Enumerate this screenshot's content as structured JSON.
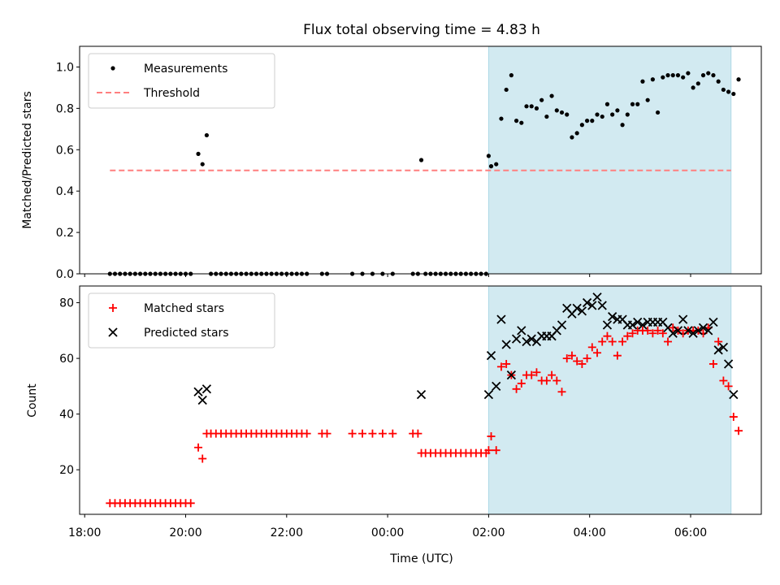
{
  "title": "Flux total observing time = 4.83 h",
  "xlabel": "Time (UTC)",
  "colors": {
    "observing_span": "#add8e6",
    "measurements": "#000000",
    "threshold": "#ff7f7f",
    "matched": "#ff0000",
    "predicted": "#000000"
  },
  "chart_data": [
    {
      "type": "scatter",
      "ylabel": "Matched/Predicted stars",
      "ylim": [
        0,
        1.1
      ],
      "yticks": [
        0.0,
        0.2,
        0.4,
        0.6,
        0.8,
        1.0
      ],
      "ytick_labels": [
        "0.0",
        "0.2",
        "0.4",
        "0.6",
        "0.8",
        "1.0"
      ],
      "xticks": [
        "18:00",
        "20:00",
        "22:00",
        "00:00",
        "02:00",
        "04:00",
        "06:00"
      ],
      "xticks_hours": [
        18,
        20,
        22,
        24,
        26,
        28,
        30
      ],
      "xlim_hours": [
        17.9,
        31.4
      ],
      "observing_span_hours": [
        26.0,
        30.8
      ],
      "legend_position": "upper left",
      "series": [
        {
          "name": "Measurements",
          "marker": "dot",
          "x": [
            "18:30",
            "18:36",
            "18:42",
            "18:48",
            "18:54",
            "19:00",
            "19:06",
            "19:12",
            "19:18",
            "19:24",
            "19:30",
            "19:36",
            "19:42",
            "19:48",
            "19:54",
            "20:00",
            "20:06",
            "20:15",
            "20:20",
            "20:25",
            "20:30",
            "20:36",
            "20:42",
            "20:48",
            "20:54",
            "21:00",
            "21:06",
            "21:12",
            "21:18",
            "21:24",
            "21:30",
            "21:36",
            "21:42",
            "21:48",
            "21:54",
            "22:00",
            "22:06",
            "22:12",
            "22:18",
            "22:24",
            "22:42",
            "22:48",
            "23:18",
            "23:30",
            "23:42",
            "23:54",
            "00:06",
            "00:30",
            "00:36",
            "00:40",
            "00:45",
            "00:51",
            "00:57",
            "01:03",
            "01:09",
            "01:15",
            "01:21",
            "01:27",
            "01:33",
            "01:39",
            "01:45",
            "01:51",
            "01:57",
            "02:00",
            "02:03",
            "02:09",
            "02:15",
            "02:21",
            "02:27",
            "02:33",
            "02:39",
            "02:45",
            "02:51",
            "02:57",
            "03:03",
            "03:09",
            "03:15",
            "03:21",
            "03:27",
            "03:33",
            "03:39",
            "03:45",
            "03:51",
            "03:57",
            "04:03",
            "04:09",
            "04:15",
            "04:21",
            "04:27",
            "04:33",
            "04:39",
            "04:45",
            "04:51",
            "04:57",
            "05:03",
            "05:09",
            "05:15",
            "05:21",
            "05:27",
            "05:33",
            "05:39",
            "05:45",
            "05:51",
            "05:57",
            "06:03",
            "06:09",
            "06:15",
            "06:21",
            "06:27",
            "06:33",
            "06:39",
            "06:45",
            "06:51",
            "06:57"
          ],
          "y": [
            0.0,
            0.0,
            0.0,
            0.0,
            0.0,
            0.0,
            0.0,
            0.0,
            0.0,
            0.0,
            0.0,
            0.0,
            0.0,
            0.0,
            0.0,
            0.0,
            0.0,
            0.58,
            0.53,
            0.67,
            0.0,
            0.0,
            0.0,
            0.0,
            0.0,
            0.0,
            0.0,
            0.0,
            0.0,
            0.0,
            0.0,
            0.0,
            0.0,
            0.0,
            0.0,
            0.0,
            0.0,
            0.0,
            0.0,
            0.0,
            0.0,
            0.0,
            0.0,
            0.0,
            0.0,
            0.0,
            0.0,
            0.0,
            0.0,
            0.55,
            0.0,
            0.0,
            0.0,
            0.0,
            0.0,
            0.0,
            0.0,
            0.0,
            0.0,
            0.0,
            0.0,
            0.0,
            0.0,
            0.57,
            0.52,
            0.53,
            0.75,
            0.89,
            0.96,
            0.74,
            0.73,
            0.81,
            0.81,
            0.8,
            0.84,
            0.76,
            0.86,
            0.79,
            0.78,
            0.77,
            0.66,
            0.68,
            0.72,
            0.74,
            0.74,
            0.77,
            0.76,
            0.82,
            0.77,
            0.79,
            0.72,
            0.77,
            0.82,
            0.82,
            0.93,
            0.84,
            0.94,
            0.78,
            0.95,
            0.96,
            0.96,
            0.96,
            0.95,
            0.97,
            0.9,
            0.92,
            0.96,
            0.97,
            0.96,
            0.93,
            0.89,
            0.88,
            0.87,
            0.94
          ]
        },
        {
          "name": "Threshold",
          "type": "line",
          "style": "dashed",
          "x_hours": [
            18.5,
            30.8
          ],
          "y": [
            0.5,
            0.5
          ]
        }
      ]
    },
    {
      "type": "scatter",
      "ylabel": "Count",
      "ylim": [
        4,
        86
      ],
      "yticks": [
        20,
        40,
        60,
        80
      ],
      "ytick_labels": [
        "20",
        "40",
        "60",
        "80"
      ],
      "xticks": [
        "18:00",
        "20:00",
        "22:00",
        "00:00",
        "02:00",
        "04:00",
        "06:00"
      ],
      "xticks_hours": [
        18,
        20,
        22,
        24,
        26,
        28,
        30
      ],
      "xlim_hours": [
        17.9,
        31.4
      ],
      "observing_span_hours": [
        26.0,
        30.8
      ],
      "legend_position": "upper left",
      "series": [
        {
          "name": "Matched stars",
          "marker": "plus",
          "x": [
            "18:30",
            "18:36",
            "18:42",
            "18:48",
            "18:54",
            "19:00",
            "19:06",
            "19:12",
            "19:18",
            "19:24",
            "19:30",
            "19:36",
            "19:42",
            "19:48",
            "19:54",
            "20:00",
            "20:06",
            "20:15",
            "20:20",
            "20:25",
            "20:30",
            "20:36",
            "20:42",
            "20:48",
            "20:54",
            "21:00",
            "21:06",
            "21:12",
            "21:18",
            "21:24",
            "21:30",
            "21:36",
            "21:42",
            "21:48",
            "21:54",
            "22:00",
            "22:06",
            "22:12",
            "22:18",
            "22:24",
            "22:42",
            "22:48",
            "23:18",
            "23:30",
            "23:42",
            "23:54",
            "00:06",
            "00:30",
            "00:36",
            "00:40",
            "00:45",
            "00:51",
            "00:57",
            "01:03",
            "01:09",
            "01:15",
            "01:21",
            "01:27",
            "01:33",
            "01:39",
            "01:45",
            "01:51",
            "01:57",
            "02:00",
            "02:03",
            "02:09",
            "02:15",
            "02:21",
            "02:27",
            "02:33",
            "02:39",
            "02:45",
            "02:51",
            "02:57",
            "03:03",
            "03:09",
            "03:15",
            "03:21",
            "03:27",
            "03:33",
            "03:39",
            "03:45",
            "03:51",
            "03:57",
            "04:03",
            "04:09",
            "04:15",
            "04:21",
            "04:27",
            "04:33",
            "04:39",
            "04:45",
            "04:51",
            "04:57",
            "05:03",
            "05:09",
            "05:15",
            "05:21",
            "05:27",
            "05:33",
            "05:39",
            "05:45",
            "05:51",
            "05:57",
            "06:03",
            "06:09",
            "06:15",
            "06:21",
            "06:27",
            "06:33",
            "06:39",
            "06:45",
            "06:51",
            "06:57"
          ],
          "y": [
            8,
            8,
            8,
            8,
            8,
            8,
            8,
            8,
            8,
            8,
            8,
            8,
            8,
            8,
            8,
            8,
            8,
            28,
            24,
            33,
            33,
            33,
            33,
            33,
            33,
            33,
            33,
            33,
            33,
            33,
            33,
            33,
            33,
            33,
            33,
            33,
            33,
            33,
            33,
            33,
            33,
            33,
            33,
            33,
            33,
            33,
            33,
            33,
            33,
            26,
            26,
            26,
            26,
            26,
            26,
            26,
            26,
            26,
            26,
            26,
            26,
            26,
            26,
            27,
            32,
            27,
            57,
            58,
            54,
            49,
            51,
            54,
            54,
            55,
            52,
            52,
            54,
            52,
            48,
            60,
            61,
            59,
            58,
            60,
            64,
            62,
            66,
            68,
            66,
            61,
            66,
            68,
            69,
            70,
            70,
            70,
            69,
            70,
            69,
            66,
            71,
            70,
            69,
            70,
            70,
            70,
            69,
            71,
            58,
            66,
            52,
            50,
            39,
            34
          ]
        },
        {
          "name": "Predicted stars",
          "marker": "x",
          "x": [
            "18:30",
            "18:36",
            "18:42",
            "18:48",
            "18:54",
            "19:00",
            "19:06",
            "19:12",
            "19:18",
            "19:24",
            "19:30",
            "19:36",
            "19:42",
            "19:48",
            "19:54",
            "20:00",
            "20:06",
            "20:15",
            "20:20",
            "20:25",
            "20:30",
            "20:36",
            "20:42",
            "20:48",
            "20:54",
            "21:00",
            "21:06",
            "21:12",
            "21:18",
            "21:24",
            "21:30",
            "21:36",
            "21:42",
            "21:48",
            "21:54",
            "22:00",
            "22:06",
            "22:12",
            "22:18",
            "22:24",
            "22:42",
            "22:48",
            "23:18",
            "23:30",
            "23:42",
            "23:54",
            "00:06",
            "00:30",
            "00:36",
            "00:40",
            "00:45",
            "00:51",
            "00:57",
            "01:03",
            "01:09",
            "01:15",
            "01:21",
            "01:27",
            "01:33",
            "01:39",
            "01:45",
            "01:51",
            "01:57",
            "02:00",
            "02:03",
            "02:09",
            "02:15",
            "02:21",
            "02:27",
            "02:33",
            "02:39",
            "02:45",
            "02:51",
            "02:57",
            "03:03",
            "03:09",
            "03:15",
            "03:21",
            "03:27",
            "03:33",
            "03:39",
            "03:45",
            "03:51",
            "03:57",
            "04:03",
            "04:09",
            "04:15",
            "04:21",
            "04:27",
            "04:33",
            "04:39",
            "04:45",
            "04:51",
            "04:57",
            "05:03",
            "05:09",
            "05:15",
            "05:21",
            "05:27",
            "05:33",
            "05:39",
            "05:45",
            "05:51",
            "05:57",
            "06:03",
            "06:09",
            "06:15",
            "06:21",
            "06:27",
            "06:33",
            "06:39",
            "06:45",
            "06:51",
            "06:57"
          ],
          "y": [
            null,
            null,
            null,
            null,
            null,
            null,
            null,
            null,
            null,
            null,
            null,
            null,
            null,
            null,
            null,
            null,
            null,
            48,
            45,
            49,
            null,
            null,
            null,
            null,
            null,
            null,
            null,
            null,
            null,
            null,
            null,
            null,
            null,
            null,
            null,
            null,
            null,
            null,
            null,
            null,
            null,
            null,
            null,
            null,
            null,
            null,
            null,
            null,
            null,
            47,
            null,
            null,
            null,
            null,
            null,
            null,
            null,
            null,
            null,
            null,
            null,
            null,
            null,
            47,
            61,
            50,
            74,
            65,
            54,
            67,
            70,
            66,
            67,
            66,
            68,
            68,
            68,
            70,
            72,
            78,
            76,
            78,
            77,
            80,
            79,
            82,
            79,
            72,
            75,
            74,
            74,
            72,
            72,
            73,
            72,
            73,
            73,
            73,
            73,
            71,
            69,
            70,
            74,
            70,
            69,
            70,
            71,
            70,
            73,
            63,
            64,
            58,
            47,
            null
          ]
        }
      ]
    }
  ]
}
